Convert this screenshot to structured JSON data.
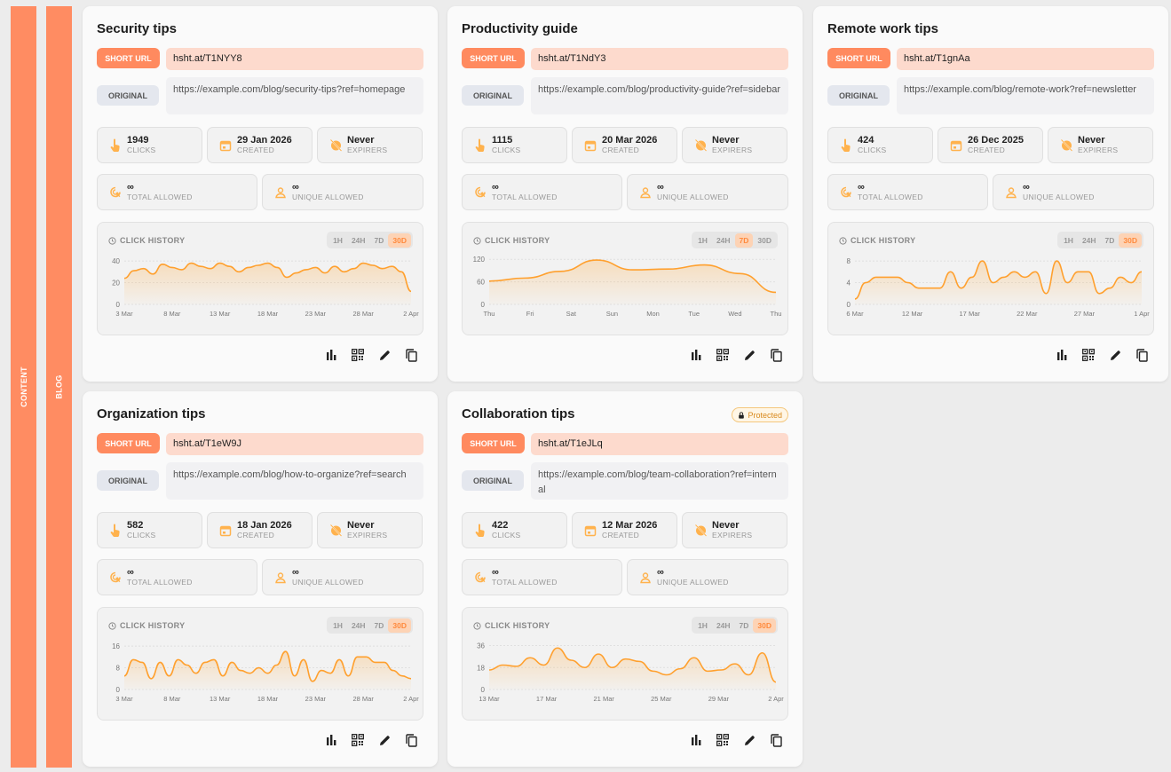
{
  "rails": {
    "content": "CONTENT",
    "blog": "BLOG"
  },
  "labels": {
    "short_url": "SHORT URL",
    "original": "ORIGINAL",
    "clicks": "CLICKS",
    "created": "CREATED",
    "expires": "EXPIRERS",
    "total_allowed": "TOTAL ALLOWED",
    "unique_allowed": "UNIQUE ALLOWED",
    "click_history": "CLICK HISTORY",
    "infinity": "∞"
  },
  "range_tabs": [
    "1H",
    "24H",
    "7D",
    "30D"
  ],
  "colors": {
    "accent": "#ff8a5f",
    "line": "#ffa02e",
    "short_bg": "#fddacd",
    "rail": "#ff8c62"
  },
  "cards": [
    {
      "title": "Security tips",
      "protected": false,
      "short_url": "hsht.at/T1NYY8",
      "original": "https://example.com/blog/security-tips?ref=homepage",
      "clicks": "1949",
      "created": "29 Jan 2026",
      "expires": "Never",
      "active_tab": "30D",
      "chart_data": {
        "type": "area",
        "x_ticks": [
          "3 Mar",
          "8 Mar",
          "13 Mar",
          "18 Mar",
          "23 Mar",
          "28 Mar",
          "2 Apr"
        ],
        "y_ticks": [
          "40",
          "20",
          "0"
        ],
        "ylim": [
          0,
          45
        ],
        "values": [
          24,
          31,
          33,
          28,
          37,
          34,
          32,
          38,
          35,
          33,
          38,
          35,
          30,
          34,
          36,
          38,
          34,
          25,
          29,
          32,
          34,
          29,
          35,
          30,
          33,
          38,
          36,
          33,
          35,
          30,
          12
        ]
      }
    },
    {
      "title": "Productivity guide",
      "protected": false,
      "short_url": "hsht.at/T1NdY3",
      "original": "https://example.com/blog/productivity-guide?ref=sidebar",
      "clicks": "1115",
      "created": "20 Mar 2026",
      "expires": "Never",
      "active_tab": "7D",
      "chart_data": {
        "type": "area",
        "x_ticks": [
          "Thu",
          "Fri",
          "Sat",
          "Sun",
          "Mon",
          "Tue",
          "Wed",
          "Thu"
        ],
        "y_ticks": [
          "120",
          "60",
          "0"
        ],
        "ylim": [
          0,
          130
        ],
        "values": [
          62,
          70,
          88,
          118,
          92,
          94,
          105,
          82,
          32
        ]
      }
    },
    {
      "title": "Remote work tips",
      "protected": false,
      "short_url": "hsht.at/T1gnAa",
      "original": "https://example.com/blog/remote-work?ref=newsletter",
      "clicks": "424",
      "created": "26 Dec 2025",
      "expires": "Never",
      "active_tab": "30D",
      "chart_data": {
        "type": "area",
        "x_ticks": [
          "6 Mar",
          "12 Mar",
          "17 Mar",
          "22 Mar",
          "27 Mar",
          "1 Apr"
        ],
        "y_ticks": [
          "8",
          "4",
          "0"
        ],
        "ylim": [
          0,
          9
        ],
        "values": [
          1,
          4,
          5,
          5,
          5,
          4,
          3,
          3,
          3,
          6,
          3,
          5,
          8,
          4,
          5,
          6,
          5,
          6,
          2,
          8,
          4,
          6,
          6,
          2,
          3,
          5,
          4,
          6
        ]
      }
    },
    {
      "title": "Organization tips",
      "protected": false,
      "short_url": "hsht.at/T1eW9J",
      "original": "https://example.com/blog/how-to-organize?ref=search",
      "clicks": "582",
      "created": "18 Jan 2026",
      "expires": "Never",
      "active_tab": "30D",
      "chart_data": {
        "type": "area",
        "x_ticks": [
          "3 Mar",
          "8 Mar",
          "13 Mar",
          "18 Mar",
          "23 Mar",
          "28 Mar",
          "2 Apr"
        ],
        "y_ticks": [
          "16",
          "8",
          "0"
        ],
        "ylim": [
          0,
          18
        ],
        "values": [
          5,
          11,
          10,
          4,
          10,
          5,
          11,
          9,
          6,
          10,
          11,
          5,
          10,
          7,
          6,
          8,
          6,
          9,
          14,
          5,
          11,
          3,
          7,
          6,
          11,
          5,
          12,
          12,
          10,
          10,
          7,
          5,
          4
        ]
      }
    },
    {
      "title": "Collaboration tips",
      "protected": true,
      "protected_label": "Protected",
      "short_url": "hsht.at/T1eJLq",
      "original": "https://example.com/blog/team-collaboration?ref=internal",
      "clicks": "422",
      "created": "12 Mar 2026",
      "expires": "Never",
      "active_tab": "30D",
      "chart_data": {
        "type": "area",
        "x_ticks": [
          "13 Mar",
          "17 Mar",
          "21 Mar",
          "25 Mar",
          "29 Mar",
          "2 Apr"
        ],
        "y_ticks": [
          "36",
          "18",
          "0"
        ],
        "ylim": [
          0,
          40
        ],
        "values": [
          16,
          20,
          19,
          26,
          20,
          34,
          24,
          18,
          29,
          18,
          25,
          23,
          15,
          12,
          17,
          26,
          15,
          16,
          21,
          12,
          30,
          6
        ]
      }
    }
  ]
}
